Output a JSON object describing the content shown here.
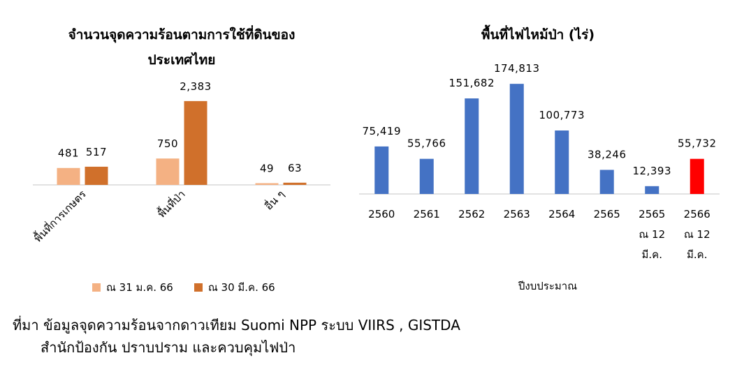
{
  "chart_data": [
    {
      "type": "bar",
      "title": "จำนวนจุดความร้อนตามการใช้ที่ดินของประเทศไทย",
      "categories": [
        "พื้นที่การเกษตร",
        "พื้นที่ป่า",
        "อื่น ๆ"
      ],
      "series": [
        {
          "name": "ณ 31 ม.ค. 66",
          "values": [
            481,
            750,
            49
          ],
          "labels": [
            "481",
            "750",
            "49"
          ],
          "color": "#F4B183"
        },
        {
          "name": "ณ 30 มี.ค. 66",
          "values": [
            517,
            2383,
            63
          ],
          "labels": [
            "517",
            "2,383",
            "63"
          ],
          "color": "#D0702B"
        }
      ],
      "ylim": [
        0,
        2400
      ],
      "grid": false,
      "legend": "bottom"
    },
    {
      "type": "bar",
      "title": "พื้นที่ไฟไหม้ป่า (ไร่)",
      "xlabel": "ปีงบประมาณ",
      "categories": [
        {
          "line1": "2560",
          "line2": "",
          "line3": ""
        },
        {
          "line1": "2561",
          "line2": "",
          "line3": ""
        },
        {
          "line1": "2562",
          "line2": "",
          "line3": ""
        },
        {
          "line1": "2563",
          "line2": "",
          "line3": ""
        },
        {
          "line1": "2564",
          "line2": "",
          "line3": ""
        },
        {
          "line1": "2565",
          "line2": "",
          "line3": ""
        },
        {
          "line1": "2565",
          "line2": "ณ 12",
          "line3": "มี.ค."
        },
        {
          "line1": "2566",
          "line2": "ณ 12",
          "line3": "มี.ค."
        }
      ],
      "values": [
        75419,
        55766,
        151682,
        174813,
        100773,
        38246,
        12393,
        55732
      ],
      "labels": [
        "75,419",
        "55,766",
        "151,682",
        "174,813",
        "100,773",
        "38,246",
        "12,393",
        "55,732"
      ],
      "colors": [
        "#4472C4",
        "#4472C4",
        "#4472C4",
        "#4472C4",
        "#4472C4",
        "#4472C4",
        "#4472C4",
        "#FF0000"
      ],
      "ylim": [
        0,
        175000
      ],
      "grid": false,
      "legend": "none"
    }
  ],
  "source": {
    "line1": "ที่มา ข้อมูลจุดความร้อนจากดาวเทียม Suomi NPP ระบบ VIIRS , GISTDA",
    "line2": "สำนักป้องกัน ปราบปราม และควบคุมไฟป่า"
  }
}
